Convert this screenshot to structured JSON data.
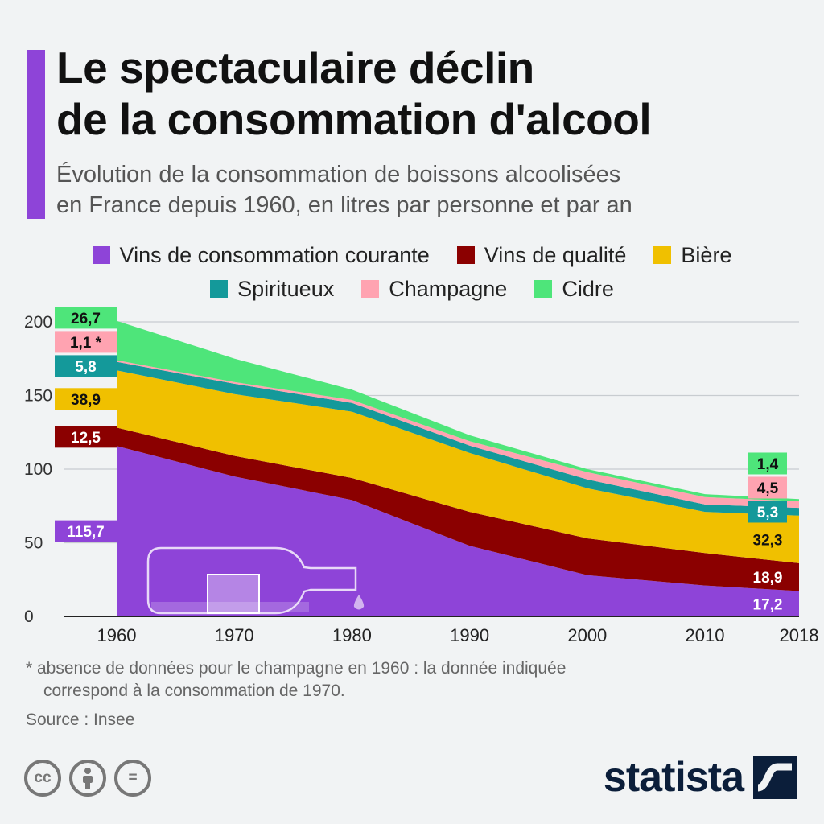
{
  "header": {
    "title_line1": "Le spectaculaire déclin",
    "title_line2": "de la consommation d'alcool",
    "subtitle_line1": "Évolution de la consommation de boissons alcoolisées",
    "subtitle_line2": "en France depuis 1960, en litres par personne et par an"
  },
  "legend": [
    {
      "label": "Vins de consommation courante",
      "color": "#8e44d8"
    },
    {
      "label": "Vins de qualité",
      "color": "#8b0000"
    },
    {
      "label": "Bière",
      "color": "#f0c000"
    },
    {
      "label": "Spiritueux",
      "color": "#14999a"
    },
    {
      "label": "Champagne",
      "color": "#ffa3b1"
    },
    {
      "label": "Cidre",
      "color": "#4ee57a"
    }
  ],
  "chart_data": {
    "type": "area",
    "stacked": true,
    "x": [
      1960,
      1970,
      1980,
      1990,
      2000,
      2010,
      2018
    ],
    "ylim": [
      0,
      200
    ],
    "yticks": [
      0,
      50,
      100,
      150,
      200
    ],
    "grid": true,
    "series": [
      {
        "name": "Vins de consommation courante",
        "color": "#8e44d8",
        "values": [
          115.7,
          95,
          79,
          48,
          28,
          21,
          17.2
        ]
      },
      {
        "name": "Vins de qualité",
        "color": "#8b0000",
        "values": [
          12.5,
          14,
          15,
          23,
          25,
          22,
          18.9
        ]
      },
      {
        "name": "Bière",
        "color": "#f0c000",
        "values": [
          38.9,
          42,
          45,
          40,
          34,
          28,
          32.3
        ]
      },
      {
        "name": "Spiritueux",
        "color": "#14999a",
        "values": [
          5.8,
          7,
          6,
          5,
          6,
          5,
          5.3
        ]
      },
      {
        "name": "Champagne",
        "color": "#ffa3b1",
        "values": [
          1.1,
          1.1,
          2,
          3,
          5,
          5,
          4.5
        ]
      },
      {
        "name": "Cidre",
        "color": "#4ee57a",
        "values": [
          26.7,
          16,
          7,
          4,
          2,
          2,
          1.4
        ]
      }
    ],
    "start_labels": [
      "115,7",
      "12,5",
      "38,9",
      "5,8",
      "1,1 *",
      "26,7"
    ],
    "end_labels": [
      "17,2",
      "18,9",
      "32,3",
      "5,3",
      "4,5",
      "1,4"
    ]
  },
  "footer": {
    "note_line1": "* absence de données pour le champagne en 1960 : la donnée indiquée",
    "note_line2": "correspond à la consommation de 1970.",
    "source": "Source : Insee",
    "brand": "statista",
    "cc_label": "cc",
    "equals_label": "="
  }
}
